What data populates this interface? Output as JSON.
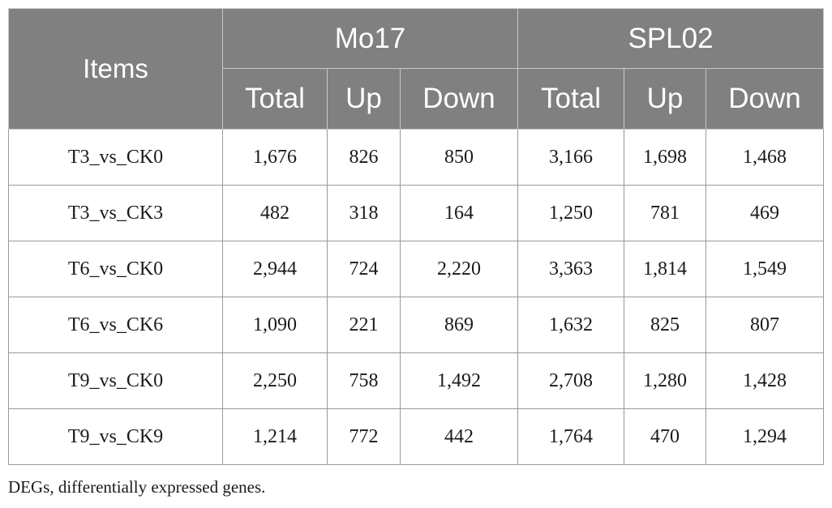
{
  "table": {
    "header": {
      "items": "Items",
      "group1": "Mo17",
      "group2": "SPL02",
      "sub": [
        "Total",
        "Up",
        "Down",
        "Total",
        "Up",
        "Down"
      ]
    },
    "rows": [
      {
        "item": "T3_vs_CK0",
        "values": [
          "1,676",
          "826",
          "850",
          "3,166",
          "1,698",
          "1,468"
        ]
      },
      {
        "item": "T3_vs_CK3",
        "values": [
          "482",
          "318",
          "164",
          "1,250",
          "781",
          "469"
        ]
      },
      {
        "item": "T6_vs_CK0",
        "values": [
          "2,944",
          "724",
          "2,220",
          "3,363",
          "1,814",
          "1,549"
        ]
      },
      {
        "item": "T6_vs_CK6",
        "values": [
          "1,090",
          "221",
          "869",
          "1,632",
          "825",
          "807"
        ]
      },
      {
        "item": "T9_vs_CK0",
        "values": [
          "2,250",
          "758",
          "1,492",
          "2,708",
          "1,280",
          "1,428"
        ]
      },
      {
        "item": "T9_vs_CK9",
        "values": [
          "1,214",
          "772",
          "442",
          "1,764",
          "470",
          "1,294"
        ]
      }
    ]
  },
  "footnote": "DEGs, differentially expressed genes.",
  "colors": {
    "header_bg": "#808080",
    "header_text": "#ffffff",
    "border": "#9a9a9a"
  }
}
